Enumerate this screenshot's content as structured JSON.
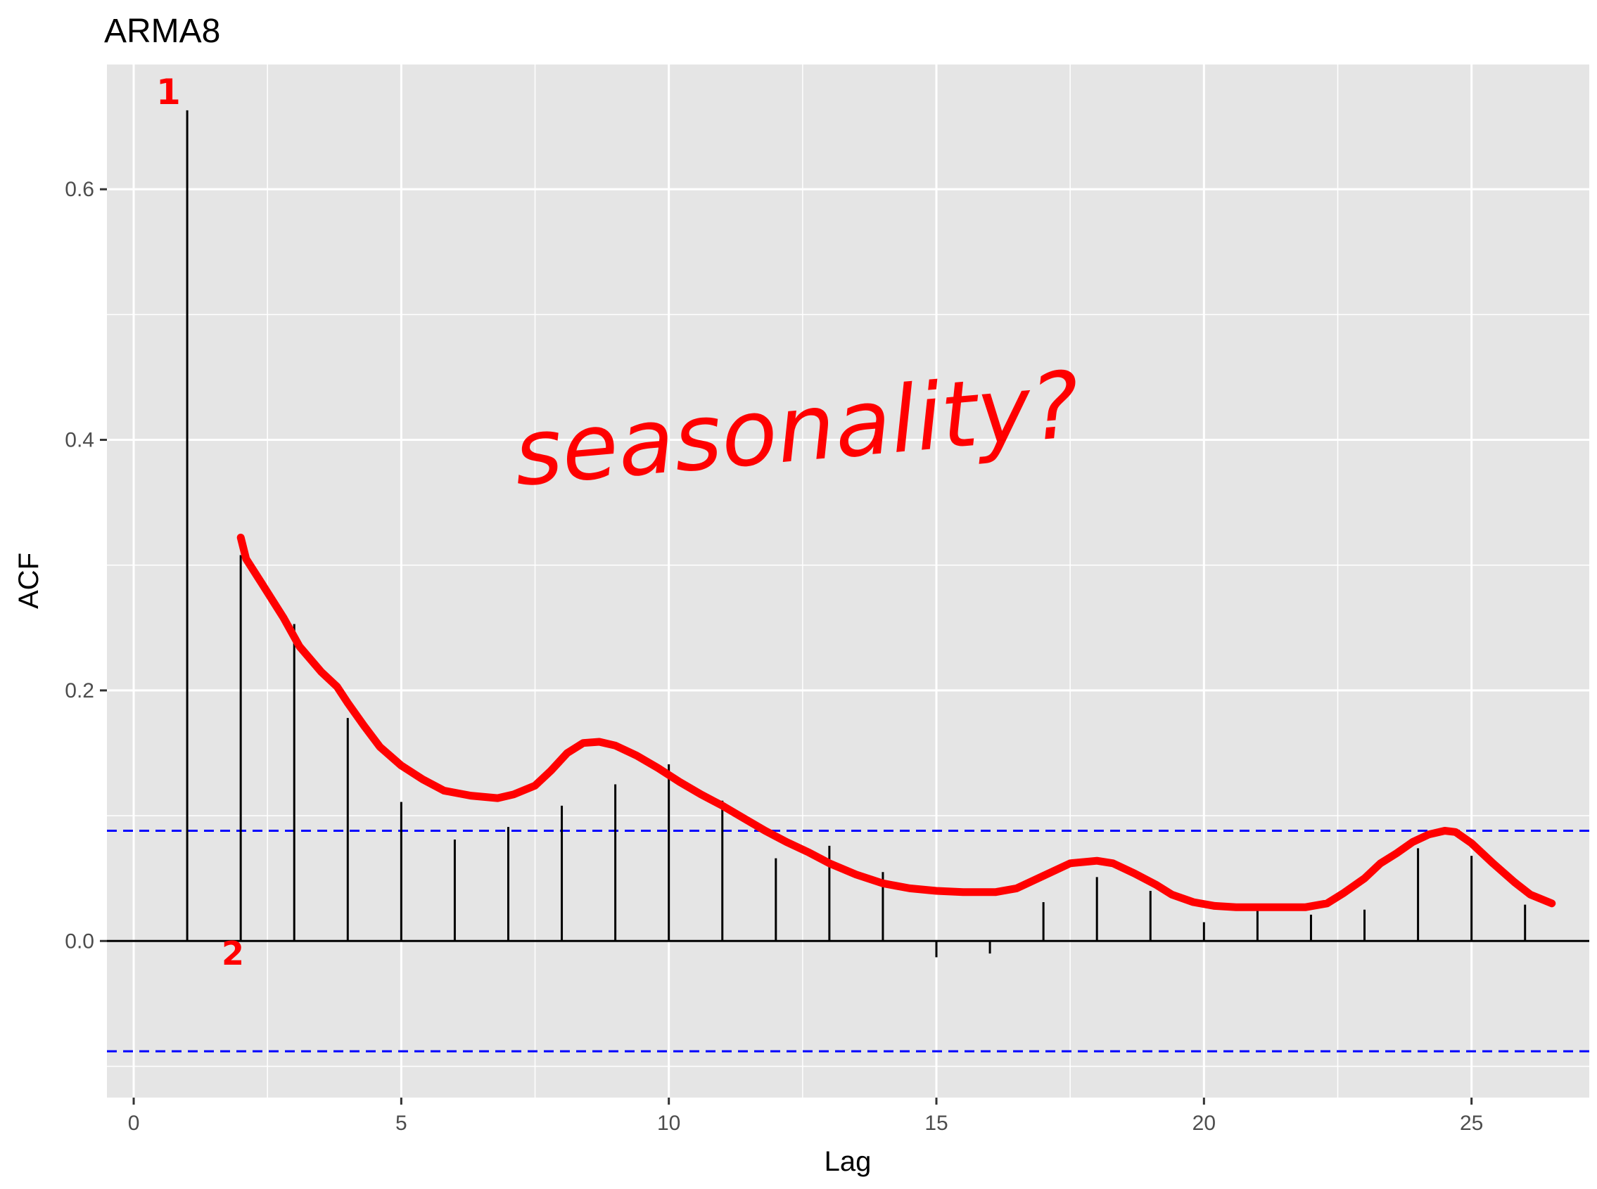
{
  "chart_data": {
    "type": "bar",
    "title": "ARMA8",
    "xlabel": "Lag",
    "ylabel": "ACF",
    "xlim": [
      -0.5,
      27.2
    ],
    "ylim": [
      -0.125,
      0.7
    ],
    "x_ticks": [
      0,
      5,
      10,
      15,
      20,
      25
    ],
    "y_ticks": [
      0.0,
      0.2,
      0.4,
      0.6
    ],
    "y_tick_labels": [
      "0.0",
      "0.2",
      "0.4",
      "0.6"
    ],
    "grid": true,
    "x": [
      1,
      2,
      3,
      4,
      5,
      6,
      7,
      8,
      9,
      10,
      11,
      12,
      13,
      14,
      15,
      16,
      17,
      18,
      19,
      20,
      21,
      22,
      23,
      24,
      25,
      26
    ],
    "values": [
      0.663,
      0.308,
      0.253,
      0.178,
      0.111,
      0.081,
      0.091,
      0.108,
      0.125,
      0.141,
      0.112,
      0.066,
      0.076,
      0.055,
      -0.013,
      -0.01,
      0.031,
      0.051,
      0.04,
      0.015,
      0.025,
      0.021,
      0.025,
      0.074,
      0.068,
      0.029
    ],
    "confidence_band": 0.088,
    "colors": {
      "bars": "#000000",
      "band": "#0000ff",
      "annotation": "#ff0000",
      "panel": "#e5e5e5",
      "grid": "#ffffff"
    },
    "annotations": [
      {
        "text": "seasonality?"
      },
      {
        "text": "1"
      },
      {
        "text": "2"
      }
    ],
    "trend_curve": {
      "x": [
        2.0,
        2.1,
        2.4,
        2.8,
        3.1,
        3.5,
        3.8,
        4.0,
        4.3,
        4.6,
        5.0,
        5.4,
        5.8,
        6.3,
        6.8,
        7.1,
        7.5,
        7.8,
        8.1,
        8.4,
        8.7,
        9.0,
        9.4,
        9.8,
        10.2,
        10.6,
        11.0,
        11.4,
        11.8,
        12.2,
        12.6,
        13.0,
        13.5,
        14.0,
        14.5,
        15.0,
        15.5,
        16.1,
        16.5,
        17.0,
        17.5,
        18.0,
        18.3,
        18.7,
        19.1,
        19.4,
        19.8,
        20.2,
        20.6,
        21.0,
        21.5,
        21.9,
        22.3,
        22.6,
        23.0,
        23.3,
        23.6,
        23.9,
        24.2,
        24.5,
        24.7,
        25.0,
        25.4,
        25.8,
        26.1,
        26.5
      ],
      "y": [
        0.322,
        0.305,
        0.285,
        0.258,
        0.235,
        0.215,
        0.203,
        0.19,
        0.172,
        0.155,
        0.14,
        0.129,
        0.12,
        0.116,
        0.114,
        0.117,
        0.124,
        0.136,
        0.15,
        0.158,
        0.159,
        0.156,
        0.148,
        0.138,
        0.127,
        0.117,
        0.108,
        0.098,
        0.088,
        0.079,
        0.071,
        0.062,
        0.053,
        0.046,
        0.042,
        0.04,
        0.039,
        0.039,
        0.042,
        0.052,
        0.062,
        0.064,
        0.062,
        0.054,
        0.045,
        0.037,
        0.031,
        0.028,
        0.027,
        0.027,
        0.027,
        0.027,
        0.03,
        0.038,
        0.05,
        0.062,
        0.07,
        0.079,
        0.085,
        0.088,
        0.087,
        0.078,
        0.062,
        0.047,
        0.037,
        0.03
      ]
    }
  }
}
